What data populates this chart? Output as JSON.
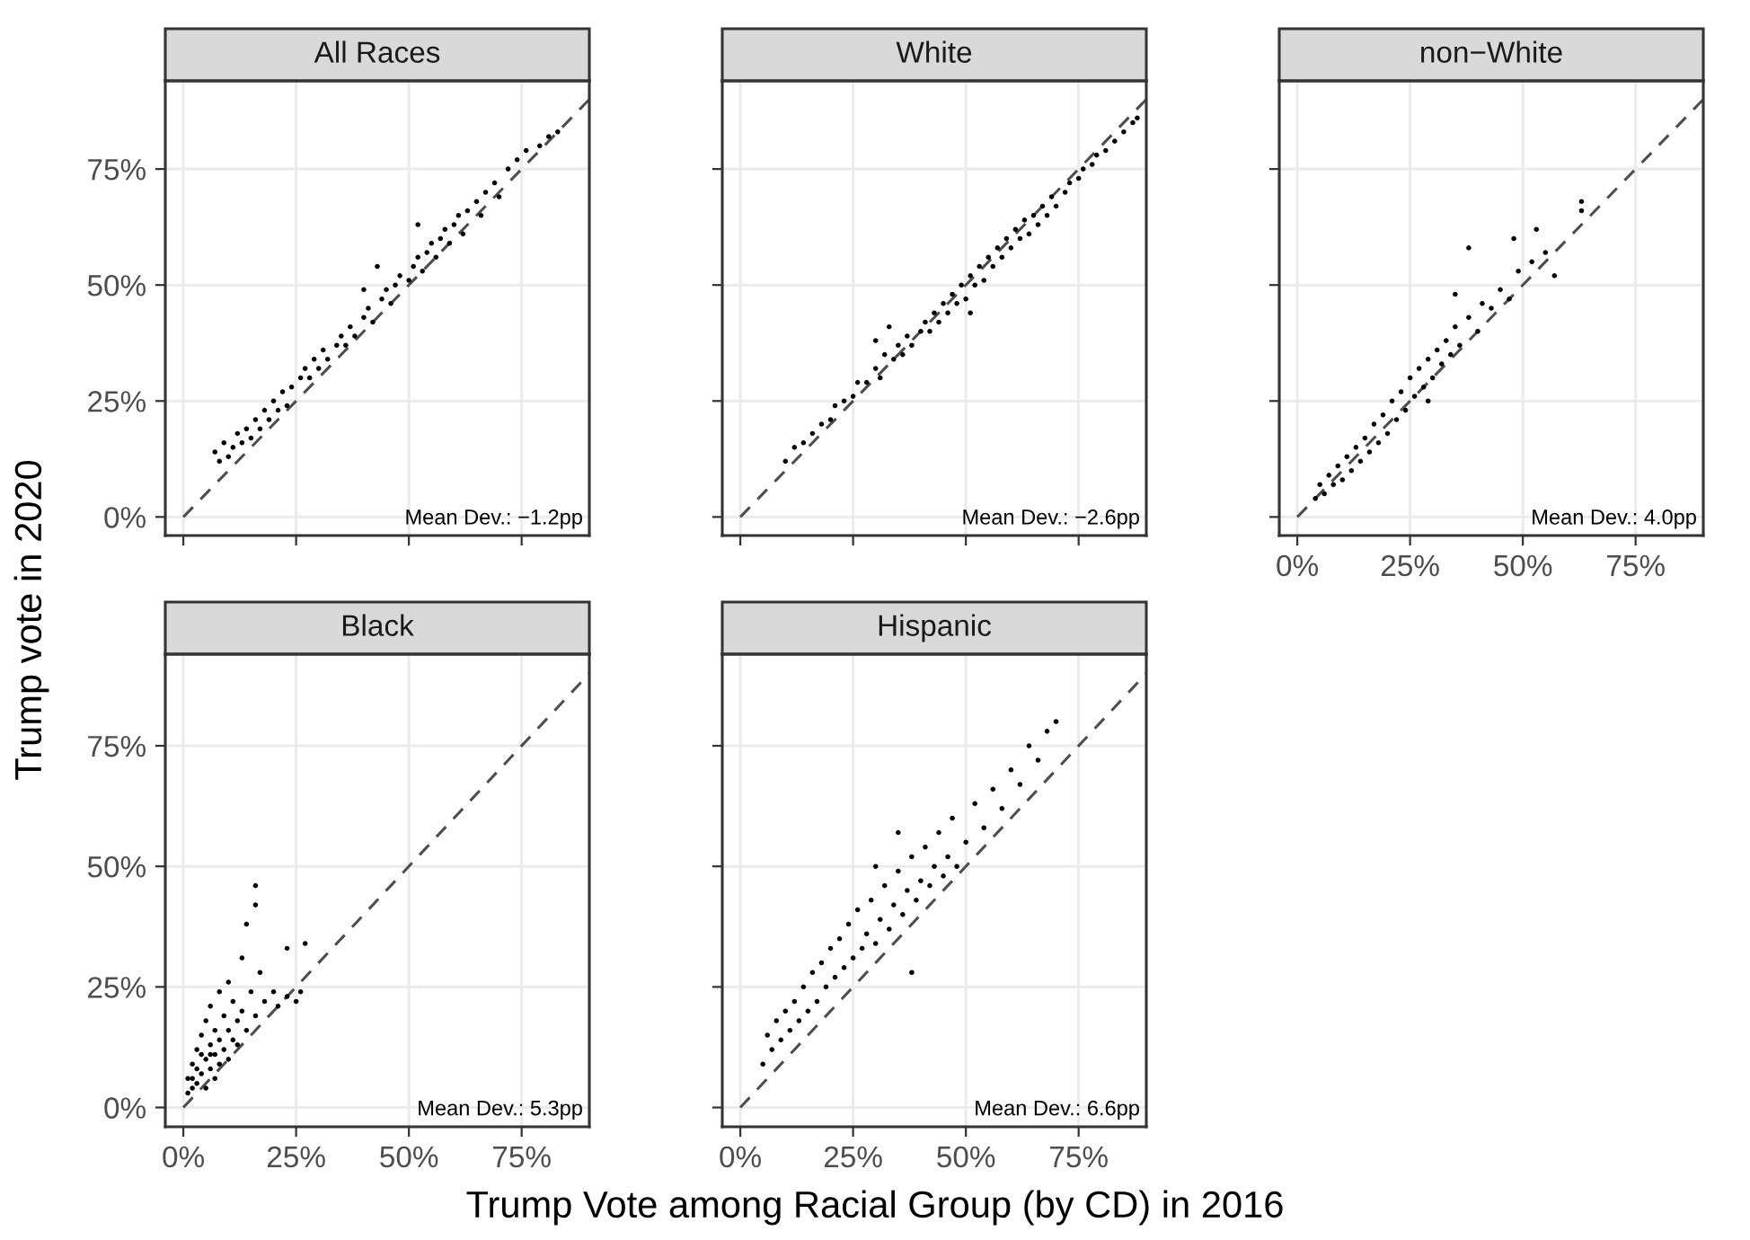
{
  "chart_data": [
    {
      "type": "scatter",
      "title": "All Races",
      "ylabel": "Trump vote in 2020",
      "tick_labels": "y",
      "grid": true,
      "annotations": [
        "Mean Dev.: −1.2pp"
      ],
      "xlim": [
        -4,
        90
      ],
      "ylim": [
        -4,
        94
      ],
      "xticks": [
        0,
        25,
        50,
        75
      ],
      "yticks": [
        {
          "value": 0,
          "label": "0%"
        },
        {
          "value": 25,
          "label": "25%"
        },
        {
          "value": 50,
          "label": "50%"
        },
        {
          "value": 75,
          "label": "75%"
        }
      ],
      "series": [
        {
          "marker": "circle",
          "color": "#000000",
          "x": [
            7,
            8,
            9,
            10,
            11,
            12,
            13,
            14,
            15,
            16,
            17,
            18,
            19,
            20,
            21,
            22,
            23,
            24,
            26,
            27,
            28,
            29,
            30,
            31,
            32,
            34,
            35,
            36,
            37,
            38,
            40,
            41,
            42,
            44,
            45,
            46,
            47,
            48,
            50,
            51,
            52,
            53,
            54,
            55,
            56,
            57,
            58,
            59,
            60,
            61,
            62,
            63,
            65,
            66,
            67,
            69,
            70,
            72,
            74,
            76,
            79,
            81,
            83,
            52,
            43,
            40
          ],
          "values": [
            14,
            12,
            16,
            13,
            15,
            18,
            16,
            19,
            17,
            21,
            19,
            23,
            21,
            25,
            23,
            27,
            24,
            28,
            30,
            32,
            30,
            34,
            32,
            36,
            34,
            37,
            39,
            37,
            41,
            39,
            43,
            45,
            42,
            47,
            49,
            46,
            50,
            52,
            51,
            54,
            56,
            53,
            57,
            59,
            56,
            60,
            62,
            59,
            63,
            65,
            61,
            66,
            68,
            65,
            70,
            72,
            69,
            75,
            77,
            79,
            80,
            82,
            83,
            63,
            54,
            49
          ]
        },
        {
          "type": "line",
          "marker": "none",
          "line_style": "dashed",
          "color": "#4d4d4d",
          "x": [
            0,
            90
          ],
          "values": [
            0,
            90
          ]
        }
      ]
    },
    {
      "type": "scatter",
      "title": "White",
      "tick_labels": false,
      "grid": true,
      "annotations": [
        "Mean Dev.: −2.6pp"
      ],
      "xlim": [
        -4,
        90
      ],
      "ylim": [
        -4,
        94
      ],
      "xticks": [
        0,
        25,
        50,
        75
      ],
      "yticks": [
        0,
        25,
        50,
        75
      ],
      "series": [
        {
          "marker": "circle",
          "color": "#000000",
          "x": [
            10,
            12,
            14,
            16,
            18,
            20,
            21,
            23,
            25,
            26,
            28,
            30,
            31,
            32,
            34,
            35,
            36,
            37,
            38,
            40,
            41,
            42,
            43,
            44,
            45,
            46,
            47,
            48,
            49,
            50,
            51,
            52,
            53,
            54,
            55,
            56,
            57,
            58,
            59,
            60,
            61,
            62,
            63,
            64,
            65,
            66,
            67,
            68,
            69,
            70,
            72,
            73,
            75,
            76,
            78,
            79,
            81,
            83,
            85,
            87,
            88,
            30,
            33,
            51
          ],
          "values": [
            12,
            15,
            16,
            18,
            20,
            21,
            24,
            25,
            26,
            29,
            29,
            32,
            30,
            35,
            34,
            37,
            35,
            39,
            37,
            40,
            42,
            40,
            44,
            42,
            46,
            44,
            48,
            46,
            50,
            47,
            52,
            50,
            54,
            51,
            56,
            54,
            58,
            56,
            60,
            58,
            62,
            60,
            64,
            61,
            65,
            63,
            67,
            65,
            69,
            67,
            70,
            72,
            73,
            75,
            76,
            78,
            79,
            81,
            83,
            85,
            86,
            38,
            41,
            44
          ]
        },
        {
          "type": "line",
          "marker": "none",
          "line_style": "dashed",
          "color": "#4d4d4d",
          "x": [
            0,
            90
          ],
          "values": [
            0,
            90
          ]
        }
      ]
    },
    {
      "type": "scatter",
      "title": "non−White",
      "tick_labels": "x",
      "grid": true,
      "annotations": [
        "Mean Dev.: 4.0pp"
      ],
      "xlim": [
        -4,
        90
      ],
      "ylim": [
        -4,
        94
      ],
      "xticks": [
        {
          "value": 0,
          "label": "0%"
        },
        {
          "value": 25,
          "label": "25%"
        },
        {
          "value": 50,
          "label": "50%"
        },
        {
          "value": 75,
          "label": "75%"
        }
      ],
      "yticks": [
        0,
        25,
        50,
        75
      ],
      "series": [
        {
          "marker": "circle",
          "color": "#000000",
          "x": [
            4,
            5,
            6,
            7,
            8,
            9,
            10,
            11,
            12,
            13,
            14,
            15,
            16,
            17,
            18,
            19,
            20,
            21,
            22,
            23,
            24,
            25,
            26,
            27,
            28,
            29,
            30,
            31,
            32,
            33,
            34,
            35,
            36,
            38,
            40,
            41,
            43,
            45,
            47,
            49,
            52,
            55,
            57,
            63,
            63,
            38,
            48,
            53,
            29,
            35
          ],
          "values": [
            4,
            7,
            5,
            9,
            7,
            11,
            8,
            13,
            10,
            15,
            12,
            17,
            14,
            20,
            16,
            22,
            18,
            25,
            21,
            27,
            23,
            30,
            26,
            32,
            28,
            34,
            30,
            36,
            33,
            38,
            35,
            41,
            37,
            43,
            40,
            46,
            45,
            49,
            47,
            53,
            55,
            57,
            52,
            66,
            68,
            58,
            60,
            62,
            25,
            48
          ]
        },
        {
          "type": "line",
          "marker": "none",
          "line_style": "dashed",
          "color": "#4d4d4d",
          "x": [
            0,
            90
          ],
          "values": [
            0,
            90
          ]
        }
      ]
    },
    {
      "type": "scatter",
      "title": "Black",
      "grid": true,
      "annotations": [
        "Mean Dev.: 5.3pp"
      ],
      "xlim": [
        -4,
        90
      ],
      "ylim": [
        -4,
        94
      ],
      "xticks": [
        {
          "value": 0,
          "label": "0%"
        },
        {
          "value": 25,
          "label": "25%"
        },
        {
          "value": 50,
          "label": "50%"
        },
        {
          "value": 75,
          "label": "75%"
        }
      ],
      "yticks": [
        {
          "value": 0,
          "label": "0%"
        },
        {
          "value": 25,
          "label": "25%"
        },
        {
          "value": 50,
          "label": "50%"
        },
        {
          "value": 75,
          "label": "75%"
        }
      ],
      "series": [
        {
          "marker": "circle",
          "color": "#000000",
          "x": [
            1,
            1,
            2,
            2,
            3,
            3,
            4,
            4,
            5,
            5,
            5,
            6,
            6,
            6,
            7,
            7,
            7,
            8,
            8,
            8,
            9,
            9,
            10,
            10,
            10,
            11,
            11,
            12,
            12,
            13,
            13,
            14,
            15,
            16,
            17,
            18,
            20,
            21,
            23,
            25,
            26,
            27,
            23,
            16,
            16,
            14,
            3,
            4,
            2,
            6
          ],
          "values": [
            3,
            6,
            4,
            9,
            5,
            12,
            7,
            15,
            4,
            10,
            18,
            8,
            13,
            21,
            6,
            11,
            16,
            9,
            14,
            24,
            12,
            19,
            10,
            16,
            26,
            14,
            22,
            13,
            18,
            20,
            31,
            16,
            24,
            19,
            28,
            22,
            24,
            21,
            23,
            22,
            24,
            34,
            33,
            42,
            46,
            38,
            8,
            11,
            6,
            11
          ]
        },
        {
          "type": "line",
          "marker": "none",
          "line_style": "dashed",
          "color": "#4d4d4d",
          "x": [
            0,
            90
          ],
          "values": [
            0,
            90
          ]
        }
      ]
    },
    {
      "type": "scatter",
      "title": "Hispanic",
      "xlabel": "Trump Vote among Racial Group (by CD) in 2016",
      "tick_labels": "x",
      "grid": true,
      "annotations": [
        "Mean Dev.: 6.6pp"
      ],
      "xlim": [
        -4,
        90
      ],
      "ylim": [
        -4,
        94
      ],
      "xticks": [
        {
          "value": 0,
          "label": "0%"
        },
        {
          "value": 25,
          "label": "25%"
        },
        {
          "value": 50,
          "label": "50%"
        },
        {
          "value": 75,
          "label": "75%"
        }
      ],
      "yticks": [
        0,
        25,
        50,
        75
      ],
      "series": [
        {
          "marker": "circle",
          "color": "#000000",
          "x": [
            5,
            6,
            7,
            8,
            9,
            10,
            11,
            12,
            13,
            14,
            15,
            16,
            17,
            18,
            19,
            20,
            21,
            22,
            23,
            24,
            25,
            26,
            27,
            28,
            29,
            30,
            31,
            32,
            33,
            34,
            35,
            36,
            37,
            38,
            39,
            40,
            41,
            42,
            43,
            44,
            45,
            46,
            47,
            48,
            50,
            52,
            54,
            56,
            58,
            60,
            62,
            64,
            66,
            68,
            70,
            38,
            30,
            35
          ],
          "values": [
            9,
            15,
            12,
            18,
            14,
            20,
            16,
            22,
            18,
            25,
            20,
            28,
            22,
            30,
            25,
            33,
            27,
            35,
            29,
            38,
            31,
            41,
            33,
            36,
            43,
            34,
            39,
            46,
            37,
            42,
            49,
            40,
            45,
            52,
            43,
            47,
            54,
            46,
            50,
            57,
            48,
            52,
            60,
            50,
            55,
            63,
            58,
            66,
            62,
            70,
            67,
            75,
            72,
            78,
            80,
            28,
            50,
            57
          ]
        },
        {
          "type": "line",
          "marker": "none",
          "line_style": "dashed",
          "color": "#4d4d4d",
          "x": [
            0,
            90
          ],
          "values": [
            0,
            90
          ]
        }
      ]
    }
  ]
}
